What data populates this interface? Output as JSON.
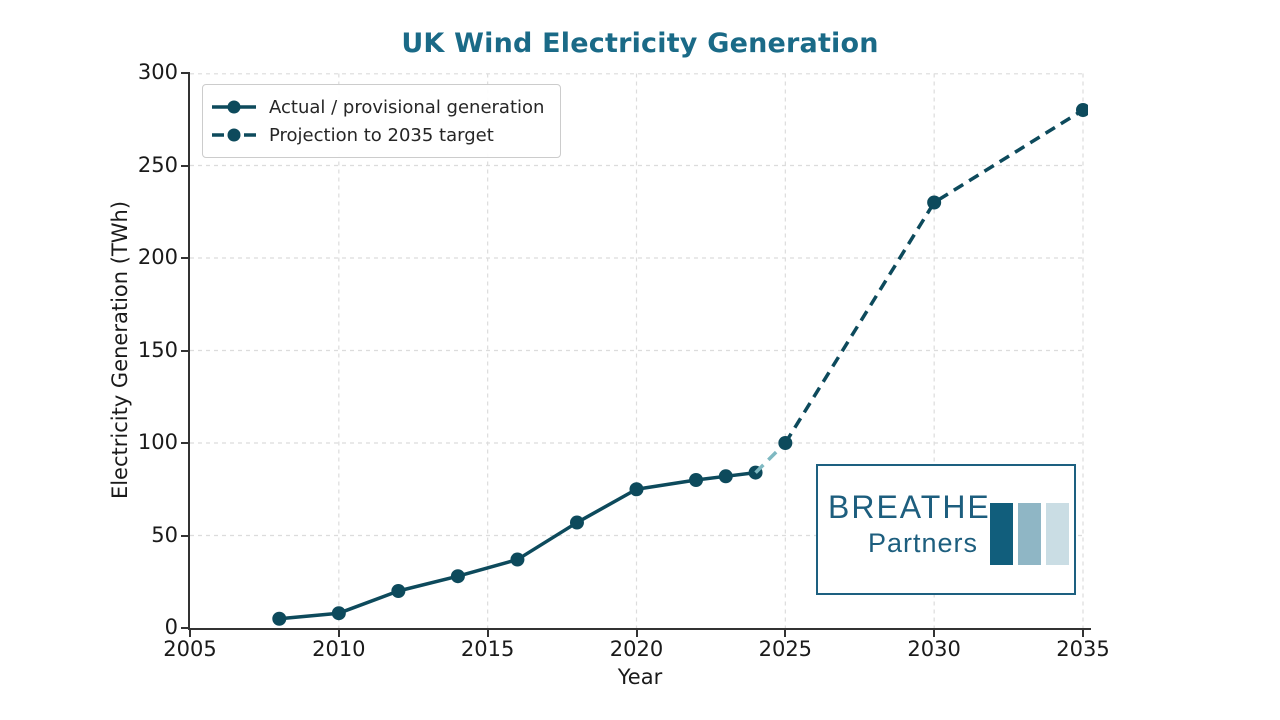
{
  "colors": {
    "title": "#1a6a87",
    "line": "#0d4a5c",
    "transition": "#7fb9c2",
    "grid": "#dcdcdc",
    "axis": "#333333",
    "tick_label": "#1a1a1a"
  },
  "chart_data": {
    "type": "line",
    "title": "UK Wind Electricity Generation",
    "xlabel": "Year",
    "ylabel": "Electricity Generation (TWh)",
    "xlim": [
      2005,
      2035
    ],
    "ylim": [
      0,
      300
    ],
    "xticks": [
      2005,
      2010,
      2015,
      2020,
      2025,
      2030,
      2035
    ],
    "yticks": [
      0,
      50,
      100,
      150,
      200,
      250,
      300
    ],
    "grid": true,
    "legend_position": "upper-left",
    "series": [
      {
        "id": "actual",
        "label": "Actual / provisional generation",
        "style": "solid",
        "color": "#0d4a5c",
        "markers": true,
        "x": [
          2008,
          2010,
          2012,
          2014,
          2016,
          2018,
          2020,
          2022,
          2023,
          2024
        ],
        "y": [
          5,
          8,
          20,
          28,
          37,
          57,
          75,
          80,
          82,
          84
        ]
      },
      {
        "id": "transition",
        "style": "dashed",
        "color": "#7fb9c2",
        "markers": false,
        "x": [
          2024,
          2025
        ],
        "y": [
          84,
          100
        ]
      },
      {
        "id": "projection",
        "label": "Projection to 2035 target",
        "style": "dashed",
        "color": "#0d4a5c",
        "markers": true,
        "x": [
          2025,
          2030,
          2035
        ],
        "y": [
          100,
          230,
          280
        ]
      }
    ]
  },
  "legend": {
    "items": [
      {
        "label": "Actual / provisional generation",
        "style": "solid"
      },
      {
        "label": "Projection to 2035 target",
        "style": "dashed"
      }
    ]
  },
  "logo": {
    "line1": "BREATHE",
    "line2": "Partners",
    "text_color": "#1d5e7e",
    "border_color": "#1d6080",
    "bar_colors": [
      "#115e7c",
      "#8fb6c5",
      "#cadde4"
    ]
  }
}
